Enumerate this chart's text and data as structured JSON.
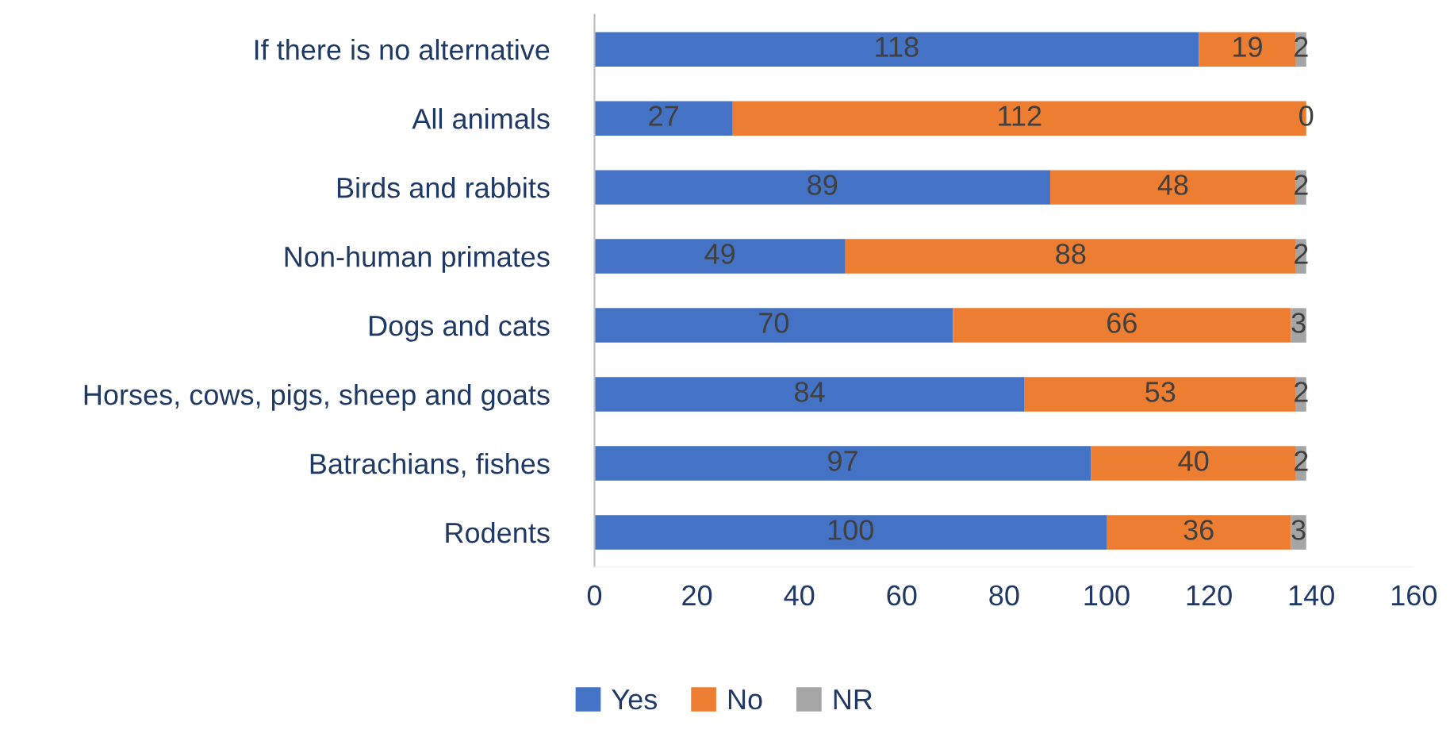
{
  "chart_data": {
    "type": "bar",
    "orientation": "horizontal",
    "stacked": true,
    "categories": [
      "If there is no alternative",
      "All animals",
      "Birds and rabbits",
      "Non-human primates",
      "Dogs and cats",
      "Horses, cows, pigs, sheep and goats",
      "Batrachians, fishes",
      "Rodents"
    ],
    "series": [
      {
        "name": "Yes",
        "color": "#4472c4",
        "values": [
          118,
          27,
          89,
          49,
          70,
          84,
          97,
          100
        ]
      },
      {
        "name": "No",
        "color": "#ed7d31",
        "values": [
          19,
          112,
          48,
          88,
          66,
          53,
          40,
          36
        ]
      },
      {
        "name": "NR",
        "color": "#a5a5a5",
        "values": [
          2,
          0,
          2,
          2,
          3,
          2,
          2,
          3
        ]
      }
    ],
    "xlim": [
      0,
      160
    ],
    "xticks": [
      0,
      20,
      40,
      60,
      80,
      100,
      120,
      140,
      160
    ],
    "data_labels": true,
    "grid": false,
    "legend": "bottom"
  }
}
